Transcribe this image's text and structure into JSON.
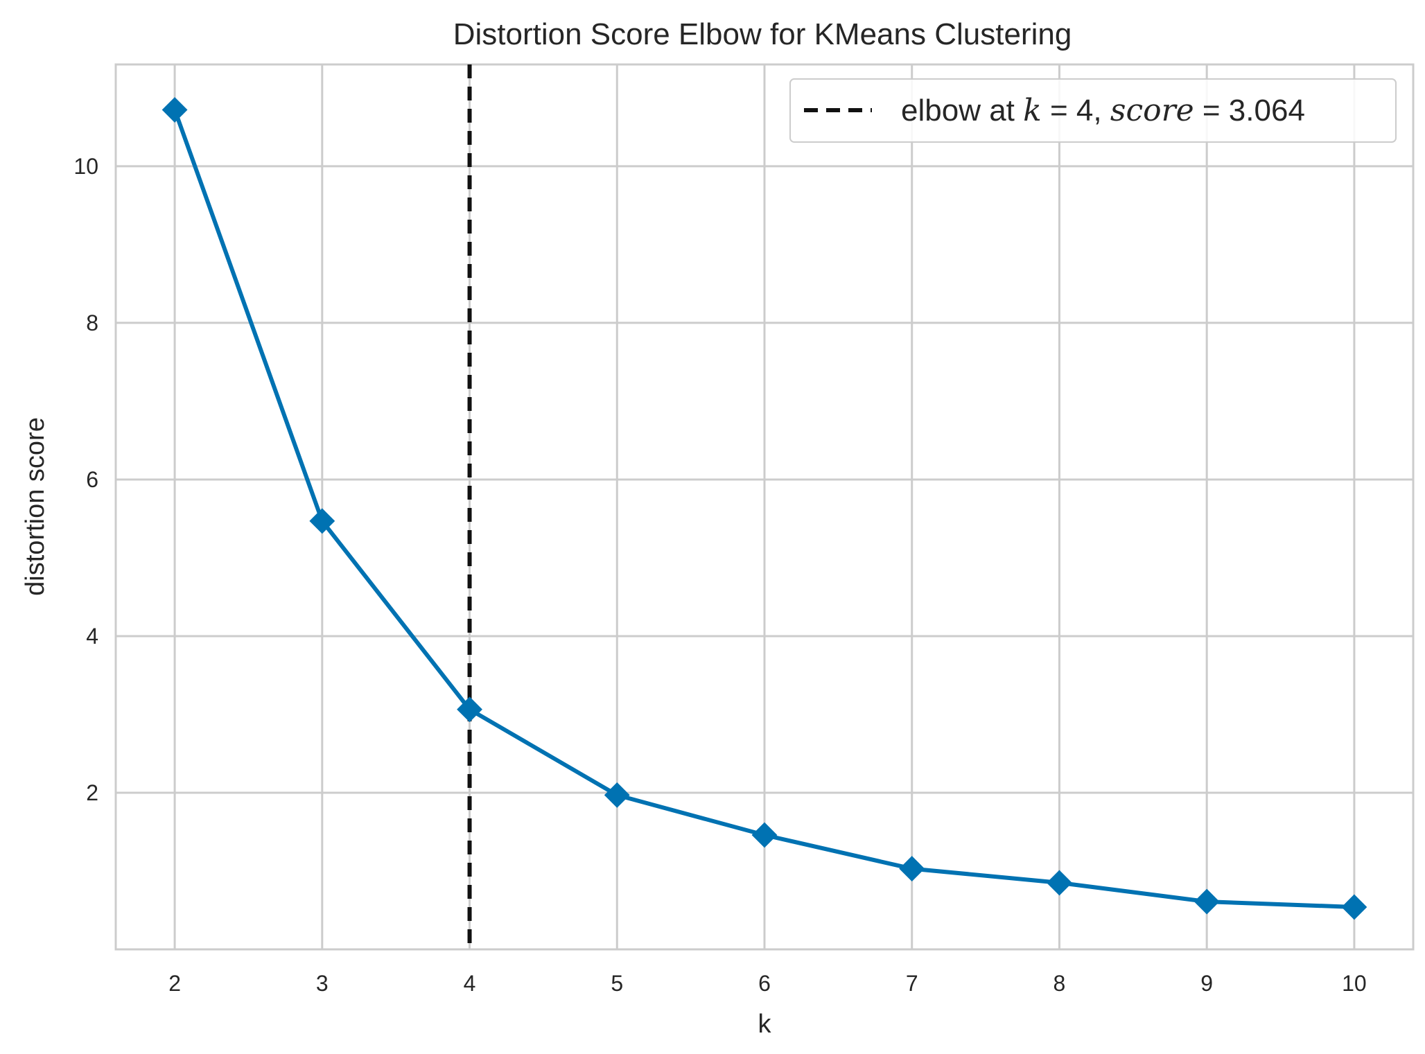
{
  "chart_data": {
    "type": "line",
    "title": "Distortion Score Elbow for KMeans Clustering",
    "xlabel": "k",
    "ylabel": "distortion score",
    "x": [
      2,
      3,
      4,
      5,
      6,
      7,
      8,
      9,
      10
    ],
    "series": [
      {
        "name": "distortion score",
        "values": [
          10.72,
          5.47,
          3.064,
          1.97,
          1.46,
          1.03,
          0.85,
          0.61,
          0.54
        ],
        "marker": "diamond",
        "color": "#0072B2"
      }
    ],
    "xlim": [
      1.6,
      10.4
    ],
    "ylim": [
      0.0,
      11.3
    ],
    "xticks": [
      "2",
      "3",
      "4",
      "5",
      "6",
      "7",
      "8",
      "9",
      "10"
    ],
    "yticks": [
      2,
      4,
      6,
      8,
      10
    ],
    "ytick_labels": [
      "2",
      "4",
      "6",
      "8",
      "10"
    ],
    "grid": true,
    "elbow": {
      "k": 4,
      "score": 3.064,
      "line_style": "dashed",
      "color": "#111111"
    },
    "legend": {
      "position": "top-right",
      "prefix": "elbow at ",
      "k_symbol": "k",
      "k_value": " = 4, ",
      "score_symbol": "score",
      "score_value": " = 3.064"
    },
    "colors": {
      "line": "#0072B2",
      "grid": "#cccccc",
      "spine": "#cccccc",
      "elbow": "#111111"
    }
  }
}
